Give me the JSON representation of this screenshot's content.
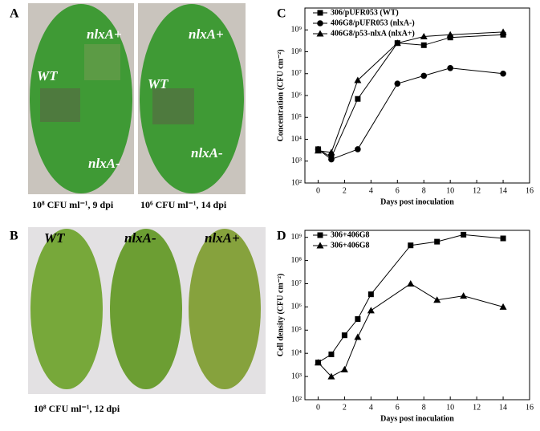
{
  "panel_a": {
    "label": "A",
    "left_labels": [
      "WT",
      "nlxA+",
      "nlxA-"
    ],
    "right_labels": [
      "WT",
      "nlxA+",
      "nlxA-"
    ],
    "captions": [
      "10⁸ CFU ml⁻¹, 9 dpi",
      "10⁶ CFU ml⁻¹, 14 dpi"
    ]
  },
  "panel_b": {
    "label": "B",
    "leaf_labels": [
      "WT",
      "nlxA-",
      "nlxA+"
    ],
    "caption": "10⁸ CFU ml⁻¹, 12 dpi"
  },
  "chart_data": [
    {
      "type": "line",
      "panel_label": "C",
      "x_label": "Days post inoculation",
      "y_label": "Concentration (CFU cm⁻²)",
      "log_y": true,
      "xlim": [
        -1,
        16
      ],
      "xticks": [
        0,
        2,
        4,
        6,
        8,
        10,
        12,
        14,
        16
      ],
      "ylim": [
        100,
        10000000000
      ],
      "yticks": [
        {
          "value": 100,
          "label": "10²"
        },
        {
          "value": 1000,
          "label": "10³"
        },
        {
          "value": 10000,
          "label": "10⁴"
        },
        {
          "value": 100000,
          "label": "10⁵"
        },
        {
          "value": 1000000,
          "label": "10⁶"
        },
        {
          "value": 10000000,
          "label": "10⁷"
        },
        {
          "value": 100000000,
          "label": "10⁸"
        },
        {
          "value": 1000000000,
          "label": "10⁹"
        }
      ],
      "series": [
        {
          "name": "306/pUFR053 (WT)",
          "color": "#000000",
          "marker": "square",
          "x": [
            0,
            1,
            3,
            6,
            8,
            10,
            14
          ],
          "values": [
            3500,
            1500,
            700000,
            250000000,
            200000000,
            450000000,
            600000000
          ]
        },
        {
          "name": "406G8/pUFR053 (nlxA-)",
          "color": "#000000",
          "marker": "circle",
          "x": [
            0,
            1,
            3,
            6,
            8,
            10,
            14
          ],
          "values": [
            3500,
            1200,
            3500,
            3500000,
            8000000,
            18000000,
            10000000
          ]
        },
        {
          "name": "406G8/p53-nlxA (nlxA+)",
          "color": "#000000",
          "marker": "triangle",
          "x": [
            0,
            1,
            3,
            6,
            8,
            10,
            14
          ],
          "values": [
            3000,
            2500,
            5000000,
            250000000,
            500000000,
            600000000,
            800000000
          ]
        }
      ]
    },
    {
      "type": "line",
      "panel_label": "D",
      "x_label": "Days post inoculation",
      "y_label": "Cell density (CFU cm⁻²)",
      "log_y": true,
      "xlim": [
        -1,
        16
      ],
      "xticks": [
        0,
        2,
        4,
        6,
        8,
        10,
        12,
        14,
        16
      ],
      "ylim": [
        100,
        2000000000
      ],
      "yticks": [
        {
          "value": 100,
          "label": "10²"
        },
        {
          "value": 1000,
          "label": "10³"
        },
        {
          "value": 10000,
          "label": "10⁴"
        },
        {
          "value": 100000,
          "label": "10⁵"
        },
        {
          "value": 1000000,
          "label": "10⁶"
        },
        {
          "value": 10000000,
          "label": "10⁷"
        },
        {
          "value": 100000000,
          "label": "10⁸"
        },
        {
          "value": 1000000000,
          "label": "10⁹"
        }
      ],
      "series": [
        {
          "name": "306+406G8",
          "color": "#000000",
          "marker": "square",
          "x": [
            0,
            1,
            2,
            3,
            4,
            7,
            9,
            11,
            14
          ],
          "values": [
            4000,
            9000,
            60000,
            300000,
            3500000,
            450000000,
            650000000,
            1300000000,
            900000000
          ]
        },
        {
          "name": "306+406G8",
          "color": "#000000",
          "marker": "triangle",
          "x": [
            0,
            1,
            2,
            3,
            4,
            7,
            9,
            11,
            14
          ],
          "values": [
            4000,
            1000,
            2000,
            50000,
            700000,
            10000000,
            2000000,
            3000000,
            1000000
          ]
        }
      ]
    }
  ]
}
